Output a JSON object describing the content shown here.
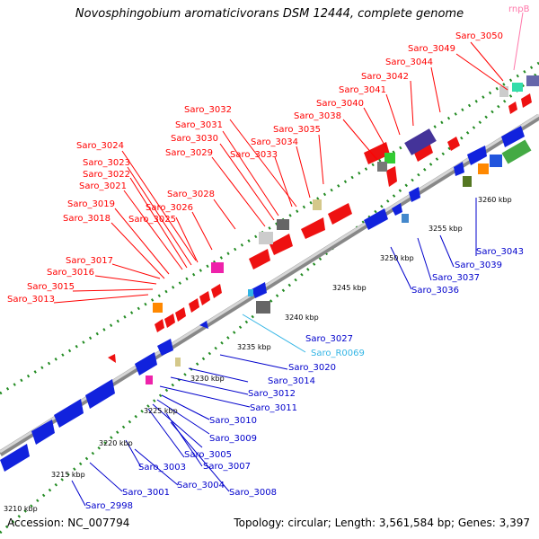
{
  "title": "Novosphingobium aromaticivorans DSM 12444, complete genome",
  "accession": "Accession: NC_007794",
  "summary": "Topology: circular; Length: 3,561,584 bp; Genes: 3,397",
  "colors": {
    "top_label": "#ff0000",
    "bottom_label": "#0000cc",
    "rna_label": "#33b5e5",
    "rrna_label": "#ff77aa",
    "backbone": "#999999",
    "tick": "#228b22"
  },
  "kbp_ticks": [
    "3210 kbp",
    "3215 kbp",
    "3220 kbp",
    "3225 kbp",
    "3230 kbp",
    "3235 kbp",
    "3240 kbp",
    "3245 kbp",
    "3250 kbp",
    "3255 kbp",
    "3260 kbp"
  ],
  "top_labels": [
    "rnpB",
    "Saro_3050",
    "Saro_3049",
    "Saro_3044",
    "Saro_3042",
    "Saro_3041",
    "Saro_3040",
    "Saro_3038",
    "Saro_3035",
    "Saro_3034",
    "Saro_3033",
    "Saro_3032",
    "Saro_3031",
    "Saro_3030",
    "Saro_3029",
    "Saro_3028",
    "Saro_3026",
    "Saro_3025",
    "Saro_3024",
    "Saro_3023",
    "Saro_3022",
    "Saro_3021",
    "Saro_3019",
    "Saro_3018",
    "Saro_3017",
    "Saro_3016",
    "Saro_3015",
    "Saro_3013"
  ],
  "bottom_labels": [
    "Saro_3043",
    "Saro_3039",
    "Saro_3037",
    "Saro_3036",
    "Saro_3027",
    "Saro_R0069",
    "Saro_3020",
    "Saro_3014",
    "Saro_3012",
    "Saro_3011",
    "Saro_3010",
    "Saro_3009",
    "Saro_3007",
    "Saro_3005",
    "Saro_3003",
    "Saro_3004",
    "Saro_3008",
    "Saro_3001",
    "Saro_2998"
  ]
}
